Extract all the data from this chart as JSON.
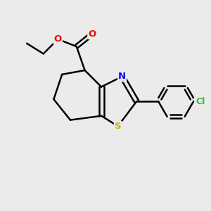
{
  "background_color": "#ebebeb",
  "bond_color": "#000000",
  "atom_colors": {
    "O": "#ff0000",
    "N": "#0000ff",
    "S": "#bbbb00",
    "Cl": "#33bb33",
    "C": "#000000"
  },
  "figsize": [
    3.0,
    3.0
  ],
  "dpi": 100
}
